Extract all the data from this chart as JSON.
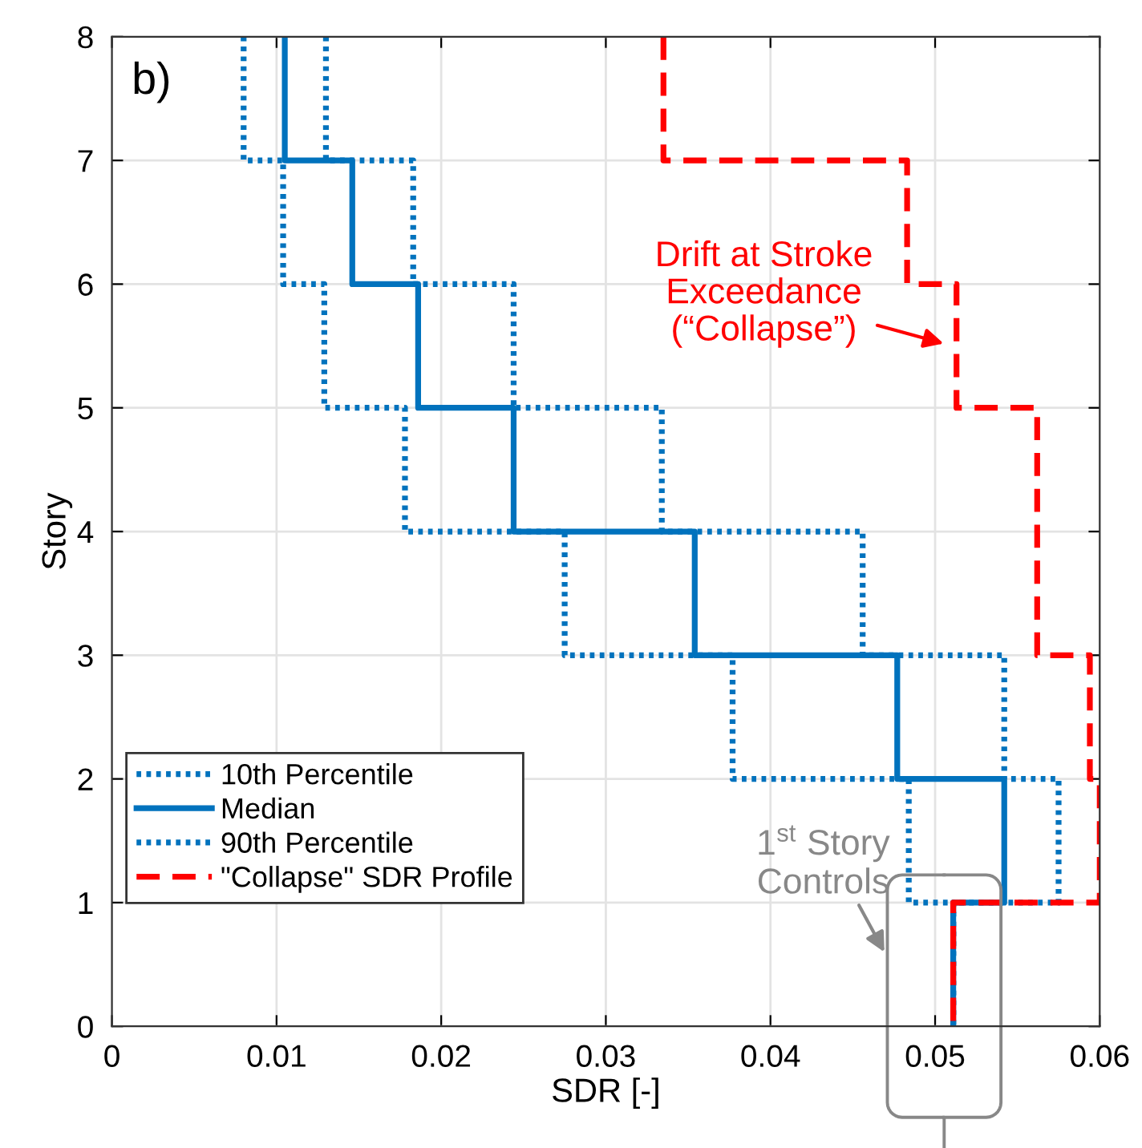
{
  "chart_data": {
    "type": "line",
    "xlabel": "SDR [-]",
    "ylabel": "Story",
    "xlim": [
      0,
      0.06
    ],
    "xticks": [
      {
        "value": 0,
        "label": "0"
      },
      0.01,
      0.02,
      0.03,
      0.04,
      0.05,
      0.06
    ],
    "ylim": [
      0,
      8
    ],
    "yticks": [
      0,
      1,
      2,
      3,
      4,
      5,
      6,
      7,
      8
    ],
    "grid": true,
    "legend": "bottom left",
    "marker": "none",
    "series": [
      {
        "name": "10th Percentile",
        "color": "#0072bd",
        "line_style": "dotted",
        "x": [
          0.008,
          0.008,
          0.0104,
          0.0104,
          0.0129,
          0.0129,
          0.0178,
          0.0178,
          0.0275,
          0.0275,
          0.0377,
          0.0377,
          0.0484,
          0.0484,
          0.0511,
          0.0511
        ],
        "values": [
          8,
          7,
          7,
          6,
          6,
          5,
          5,
          4,
          4,
          3,
          3,
          2,
          2,
          1,
          1,
          0
        ]
      },
      {
        "name": "Median",
        "color": "#0072bd",
        "line_style": "solid",
        "x": [
          0.0105,
          0.0105,
          0.0146,
          0.0146,
          0.0186,
          0.0186,
          0.0244,
          0.0244,
          0.0354,
          0.0354,
          0.0477,
          0.0477,
          0.0542,
          0.0542,
          0.0511,
          0.0511
        ],
        "values": [
          8,
          7,
          7,
          6,
          6,
          5,
          5,
          4,
          4,
          3,
          3,
          2,
          2,
          1,
          1,
          0
        ]
      },
      {
        "name": "90th Percentile",
        "color": "#0072bd",
        "line_style": "dotted",
        "x": [
          0.013,
          0.013,
          0.0183,
          0.0183,
          0.0244,
          0.0244,
          0.0334,
          0.0334,
          0.0456,
          0.0456,
          0.0542,
          0.0542,
          0.0575,
          0.0575,
          0.0511,
          0.0511
        ],
        "values": [
          8,
          7,
          7,
          6,
          6,
          5,
          5,
          4,
          4,
          3,
          3,
          2,
          2,
          1,
          1,
          0
        ]
      },
      {
        "name": "\"Collapse\" SDR Profile",
        "color": "#ff0000",
        "line_style": "dashed",
        "x": [
          0.0335,
          0.0335,
          0.0483,
          0.0483,
          0.0513,
          0.0513,
          0.0562,
          0.0562,
          0.0594,
          0.0594,
          0.06,
          0.06,
          0.0511,
          0.0511
        ],
        "values": [
          8,
          7,
          7,
          6,
          6,
          5,
          5,
          3,
          3,
          2,
          2,
          1,
          1,
          0
        ]
      }
    ],
    "annotations": [
      "b)",
      "Drift at Stroke\nExceedance\n(“Collapse”)",
      "1$^{st}$ Story\nControls"
    ]
  }
}
